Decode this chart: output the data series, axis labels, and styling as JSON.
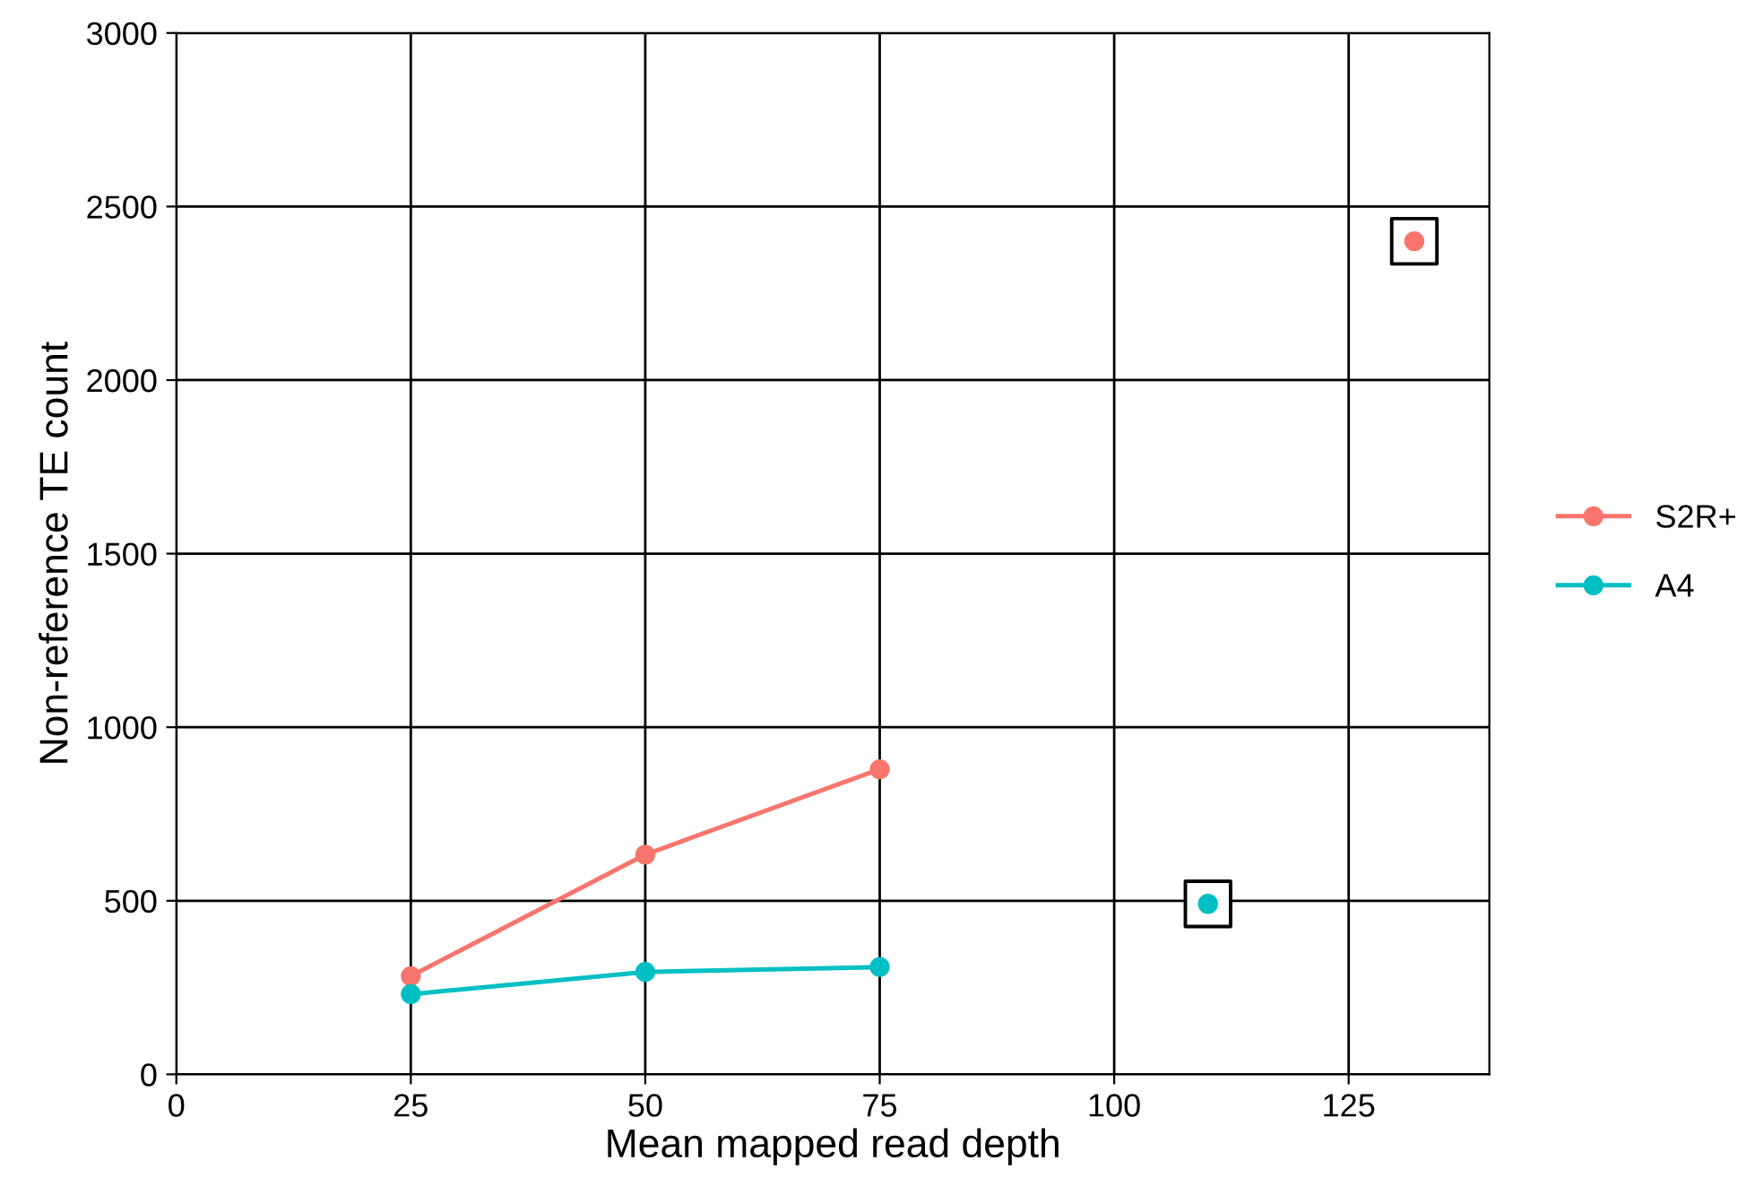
{
  "chart_data": {
    "type": "line",
    "xlabel": "Mean mapped read depth",
    "ylabel": "Non-reference TE count",
    "x": [
      25,
      50,
      75
    ],
    "series": [
      {
        "name": "S2R+",
        "color": "#f8766d",
        "values": [
          283,
          633,
          879
        ]
      },
      {
        "name": "A4",
        "color": "#00bfc4",
        "values": [
          231,
          295,
          309
        ]
      },
      {
        "type": "scatter",
        "color": "#f8766d",
        "x": [
          132
        ],
        "values": [
          2400
        ]
      },
      {
        "type": "scatter",
        "color": "#00bfc4",
        "x": [
          110
        ],
        "values": [
          491
        ]
      }
    ],
    "marker": "circle",
    "xlim": [
      0,
      140
    ],
    "ylim": [
      0,
      3000
    ],
    "xticks": [
      0,
      25,
      50,
      75,
      100,
      125
    ],
    "yticks": [
      0,
      500,
      1000,
      1500,
      2000,
      2500,
      3000
    ],
    "grid": true,
    "legend": "right"
  }
}
